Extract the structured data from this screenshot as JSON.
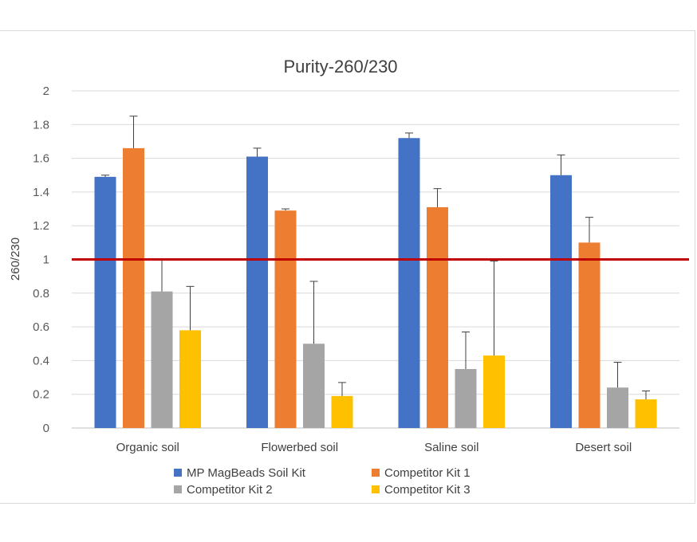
{
  "chart_data": {
    "type": "bar",
    "title": "Purity-260/230",
    "xlabel": "",
    "ylabel": "260/230",
    "ylim": [
      0,
      2
    ],
    "yticks": [
      "0",
      "0.2",
      "0.4",
      "0.6",
      "0.8",
      "1",
      "1.2",
      "1.4",
      "1.6",
      "1.8",
      "2"
    ],
    "grid": true,
    "legend_position": "bottom",
    "categories": [
      "Organic soil",
      "Flowerbed soil",
      "Saline soil",
      "Desert soil"
    ],
    "series": [
      {
        "name": "MP MagBeads Soil Kit",
        "color": "#4472c4",
        "values": [
          1.49,
          1.61,
          1.72,
          1.5
        ],
        "error": [
          0.01,
          0.05,
          0.03,
          0.12
        ]
      },
      {
        "name": "Competitor Kit 1",
        "color": "#ed7d31",
        "values": [
          1.66,
          1.29,
          1.31,
          1.1
        ],
        "error": [
          0.19,
          0.01,
          0.11,
          0.15
        ]
      },
      {
        "name": "Competitor Kit 2",
        "color": "#a5a5a5",
        "values": [
          0.81,
          0.5,
          0.35,
          0.24
        ],
        "error": [
          0.19,
          0.37,
          0.22,
          0.15
        ]
      },
      {
        "name": "Competitor Kit 3",
        "color": "#ffc000",
        "values": [
          0.58,
          0.19,
          0.43,
          0.17
        ],
        "error": [
          0.26,
          0.08,
          0.56,
          0.05
        ]
      }
    ],
    "reference_line": {
      "value": 1,
      "color": "#c00000"
    }
  }
}
